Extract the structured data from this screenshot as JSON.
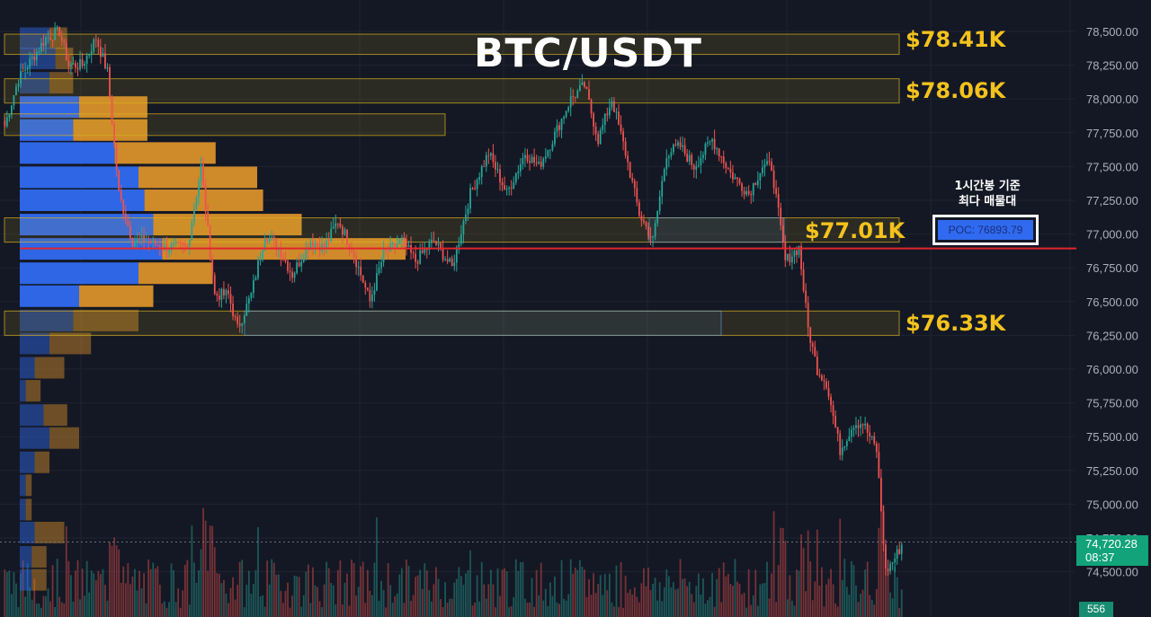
{
  "chart_title": "BTC/USDT",
  "zones": [
    {
      "label": "$78.41K",
      "low": 78330,
      "high": 78480,
      "x_start": 0.0,
      "x_end": 1000
    },
    {
      "label": "$78.06K",
      "low": 77970,
      "high": 78150,
      "x_start": 0.0,
      "x_end": 1000
    },
    {
      "label": "",
      "low": 77730,
      "high": 77890,
      "x_start": 0.0,
      "x_end": 495
    },
    {
      "label": "$77.01K",
      "low": 76940,
      "high": 77120,
      "x_start": 0.0,
      "x_end": 1000
    },
    {
      "label": "$76.33K",
      "low": 76250,
      "high": 76430,
      "x_start": 0.0,
      "x_end": 1000
    }
  ],
  "poc": {
    "note_line1": "1시간봉 기준",
    "note_line2": "최다 매물대",
    "label": "POC: 76893.79",
    "price": 76893.79
  },
  "last_price": {
    "value": "74,720.28",
    "timer": "08:37",
    "price": 74720.28
  },
  "volume_tag": "556",
  "chart_data": {
    "type": "candlestick",
    "title": "BTC/USDT",
    "y_axis": {
      "range": [
        74000,
        78750
      ],
      "ticks": [
        74500,
        74750,
        75000,
        75250,
        75500,
        75750,
        76000,
        76250,
        76500,
        76750,
        77000,
        77250,
        77500,
        77750,
        78000,
        78250,
        78500
      ],
      "tick_labels": [
        "74,500.00",
        "74,750.00",
        "75,000.00",
        "75,250.00",
        "75,500.00",
        "75,750.00",
        "76,000.00",
        "76,250.00",
        "76,500.00",
        "76,750.00",
        "77,000.00",
        "77,250.00",
        "77,500.00",
        "77,750.00",
        "78,000.00",
        "78,250.00",
        "78,500.00"
      ]
    },
    "anchors": [
      [
        0,
        77800
      ],
      [
        6,
        78150
      ],
      [
        12,
        78300
      ],
      [
        18,
        78450
      ],
      [
        24,
        78500
      ],
      [
        28,
        78250
      ],
      [
        34,
        78250
      ],
      [
        40,
        78450
      ],
      [
        45,
        78200
      ],
      [
        50,
        77300
      ],
      [
        56,
        76950
      ],
      [
        62,
        76950
      ],
      [
        70,
        76900
      ],
      [
        80,
        76900
      ],
      [
        86,
        77500
      ],
      [
        92,
        76550
      ],
      [
        98,
        76550
      ],
      [
        102,
        76300
      ],
      [
        108,
        76550
      ],
      [
        114,
        77000
      ],
      [
        120,
        76900
      ],
      [
        126,
        76700
      ],
      [
        134,
        76950
      ],
      [
        140,
        76900
      ],
      [
        146,
        77100
      ],
      [
        152,
        76900
      ],
      [
        160,
        76500
      ],
      [
        166,
        76850
      ],
      [
        174,
        76950
      ],
      [
        180,
        76800
      ],
      [
        188,
        76950
      ],
      [
        196,
        76750
      ],
      [
        204,
        77300
      ],
      [
        212,
        77600
      ],
      [
        220,
        77300
      ],
      [
        228,
        77600
      ],
      [
        234,
        77500
      ],
      [
        240,
        77700
      ],
      [
        248,
        78000
      ],
      [
        254,
        78100
      ],
      [
        260,
        77700
      ],
      [
        266,
        78000
      ],
      [
        272,
        77600
      ],
      [
        278,
        77150
      ],
      [
        284,
        76950
      ],
      [
        290,
        77600
      ],
      [
        296,
        77650
      ],
      [
        302,
        77500
      ],
      [
        310,
        77700
      ],
      [
        318,
        77450
      ],
      [
        326,
        77300
      ],
      [
        332,
        77500
      ],
      [
        336,
        77500
      ],
      [
        342,
        76800
      ],
      [
        348,
        76900
      ],
      [
        352,
        76300
      ],
      [
        356,
        76000
      ],
      [
        360,
        75900
      ],
      [
        366,
        75400
      ],
      [
        372,
        75600
      ],
      [
        376,
        75600
      ],
      [
        382,
        75400
      ],
      [
        386,
        74500
      ],
      [
        390,
        74600
      ],
      [
        393,
        74700
      ]
    ],
    "volume_profile": [
      {
        "price": 78450,
        "buy": 0.1,
        "sell": 0.06
      },
      {
        "price": 78300,
        "buy": 0.12,
        "sell": 0.06
      },
      {
        "price": 78120,
        "buy": 0.1,
        "sell": 0.08
      },
      {
        "price": 77940,
        "buy": 0.2,
        "sell": 0.23
      },
      {
        "price": 77770,
        "buy": 0.18,
        "sell": 0.25
      },
      {
        "price": 77600,
        "buy": 0.32,
        "sell": 0.34
      },
      {
        "price": 77420,
        "buy": 0.4,
        "sell": 0.4
      },
      {
        "price": 77250,
        "buy": 0.42,
        "sell": 0.4
      },
      {
        "price": 77070,
        "buy": 0.45,
        "sell": 0.5
      },
      {
        "price": 76890,
        "buy": 0.48,
        "sell": 0.82
      },
      {
        "price": 76710,
        "buy": 0.4,
        "sell": 0.25
      },
      {
        "price": 76540,
        "buy": 0.2,
        "sell": 0.25
      },
      {
        "price": 76360,
        "buy": 0.18,
        "sell": 0.22
      },
      {
        "price": 76190,
        "buy": 0.1,
        "sell": 0.14
      },
      {
        "price": 76010,
        "buy": 0.05,
        "sell": 0.1
      },
      {
        "price": 75840,
        "buy": 0.02,
        "sell": 0.05
      },
      {
        "price": 75660,
        "buy": 0.08,
        "sell": 0.08
      },
      {
        "price": 75490,
        "buy": 0.1,
        "sell": 0.1
      },
      {
        "price": 75310,
        "buy": 0.05,
        "sell": 0.05
      },
      {
        "price": 75140,
        "buy": 0.02,
        "sell": 0.02
      },
      {
        "price": 74960,
        "buy": 0.02,
        "sell": 0.02
      },
      {
        "price": 74790,
        "buy": 0.05,
        "sell": 0.1
      },
      {
        "price": 74610,
        "buy": 0.04,
        "sell": 0.05
      },
      {
        "price": 74440,
        "buy": 0.04,
        "sell": 0.05
      }
    ],
    "colors": {
      "up": "#26a69a",
      "down": "#ef5350",
      "profile_buy": "#2f6af0",
      "profile_sell": "#d9902a",
      "zone": "#d9b21f",
      "poc_line": "#e0262d"
    }
  }
}
